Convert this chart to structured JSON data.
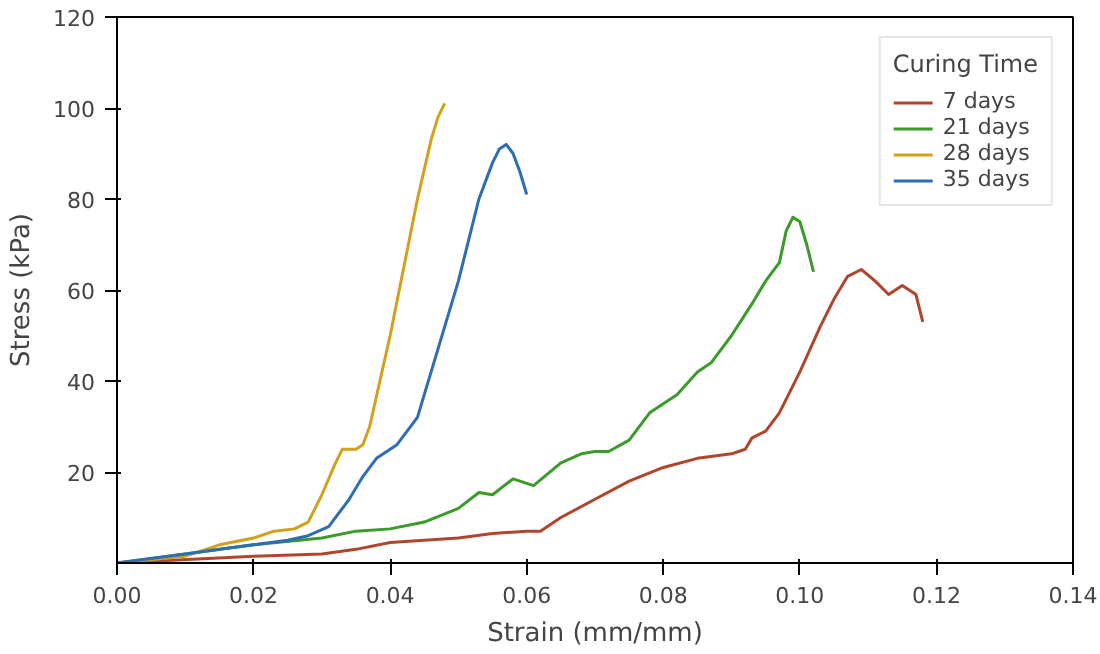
{
  "chart_data": {
    "type": "line",
    "xlabel": "Strain (mm/mm)",
    "ylabel": "Stress (kPa)",
    "legend_title": "Curing Time",
    "legend": "top right",
    "grid": false,
    "xlim": [
      0,
      0.14
    ],
    "ylim": [
      0,
      120
    ],
    "xticks": [
      {
        "value": 0,
        "label": "0.00"
      },
      {
        "value": 0.02,
        "label": "0.02"
      },
      {
        "value": 0.04,
        "label": "0.04"
      },
      {
        "value": 0.06,
        "label": "0.06"
      },
      {
        "value": 0.08,
        "label": "0.08"
      },
      {
        "value": 0.1,
        "label": "0.10"
      },
      {
        "value": 0.12,
        "label": "0.12"
      },
      {
        "value": 0.14,
        "label": "0.14"
      }
    ],
    "yticks": [
      20,
      40,
      60,
      80,
      100,
      120
    ],
    "series": [
      {
        "name": "7 days",
        "color": "#b0452e",
        "x": [
          0,
          0.02,
          0.03,
          0.035,
          0.04,
          0.05,
          0.055,
          0.06,
          0.062,
          0.065,
          0.07,
          0.075,
          0.08,
          0.085,
          0.09,
          0.092,
          0.093,
          0.095,
          0.097,
          0.1,
          0.103,
          0.105,
          0.107,
          0.109,
          0.111,
          0.113,
          0.115,
          0.117,
          0.118
        ],
        "values": [
          0,
          1.5,
          2,
          3,
          4.5,
          5.5,
          6.5,
          7,
          7,
          10,
          14,
          18,
          21,
          23,
          24,
          25,
          27.5,
          29,
          33,
          42,
          52,
          58,
          63,
          64.5,
          62,
          59,
          61,
          59,
          53
        ]
      },
      {
        "name": "21 days",
        "color": "#3a9a2a",
        "x": [
          0,
          0.01,
          0.02,
          0.03,
          0.035,
          0.04,
          0.045,
          0.05,
          0.053,
          0.055,
          0.058,
          0.061,
          0.065,
          0.068,
          0.07,
          0.072,
          0.075,
          0.078,
          0.08,
          0.082,
          0.085,
          0.087,
          0.09,
          0.093,
          0.095,
          0.097,
          0.098,
          0.099,
          0.1,
          0.101,
          0.102
        ],
        "values": [
          0,
          2,
          4,
          5.5,
          7,
          7.5,
          9,
          12,
          15.5,
          15,
          18.5,
          17,
          22,
          24,
          24.5,
          24.5,
          27,
          33,
          35,
          37,
          42,
          44,
          50,
          57,
          62,
          66,
          73,
          76,
          75,
          70,
          64
        ]
      },
      {
        "name": "28 days",
        "color": "#d4a017",
        "x": [
          0,
          0.01,
          0.015,
          0.02,
          0.023,
          0.026,
          0.028,
          0.03,
          0.032,
          0.033,
          0.035,
          0.036,
          0.037,
          0.04,
          0.042,
          0.044,
          0.046,
          0.047,
          0.048
        ],
        "values": [
          0,
          1.5,
          4,
          5.5,
          7,
          7.5,
          9,
          15,
          22,
          25,
          25,
          26,
          30,
          50,
          65,
          80,
          93,
          98,
          101
        ]
      },
      {
        "name": "35 days",
        "color": "#2e6db4",
        "x": [
          0,
          0.01,
          0.015,
          0.02,
          0.025,
          0.028,
          0.031,
          0.034,
          0.036,
          0.038,
          0.041,
          0.044,
          0.047,
          0.05,
          0.053,
          0.055,
          0.056,
          0.057,
          0.058,
          0.059,
          0.06
        ],
        "values": [
          0,
          2,
          3,
          4,
          5,
          6,
          8,
          14,
          19,
          23,
          26,
          32,
          47,
          62,
          80,
          88,
          91,
          92,
          90,
          86,
          81
        ]
      }
    ]
  }
}
